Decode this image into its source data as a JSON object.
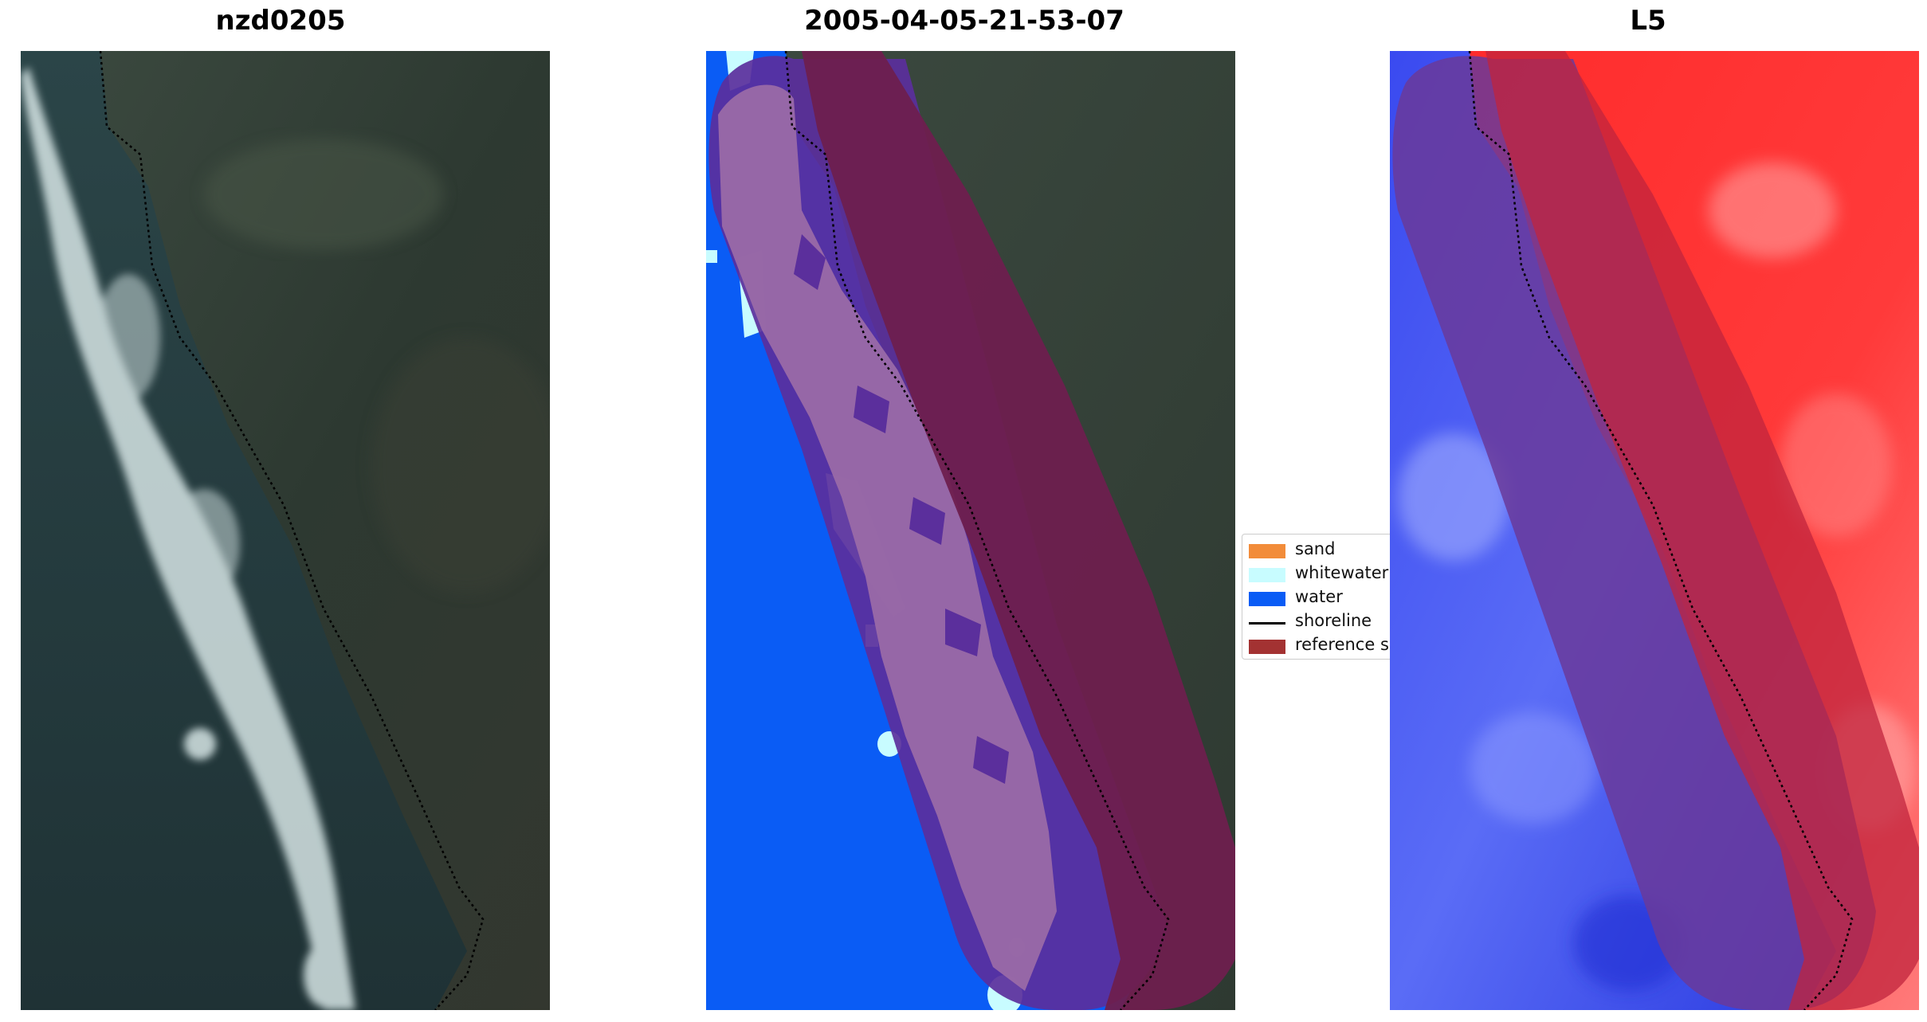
{
  "panels": [
    {
      "title": "nzd0205"
    },
    {
      "title": "2005-04-05-21-53-07"
    },
    {
      "title": "L5"
    }
  ],
  "legend": {
    "items": [
      {
        "label": "sand",
        "color": "#f28c3a",
        "kind": "patch"
      },
      {
        "label": "whitewater",
        "color": "#c8fcff",
        "kind": "patch"
      },
      {
        "label": "water",
        "color": "#0a5cf5",
        "kind": "patch"
      },
      {
        "label": "shoreline",
        "color": "#000000",
        "kind": "line"
      },
      {
        "label": "reference s",
        "color": "#a33232",
        "kind": "patch"
      }
    ]
  },
  "colors": {
    "sea_dark": "#22353a",
    "land_dark": "#2e3a32",
    "surf_white": "#d8e6e6",
    "water_blue": "#0a5cf5",
    "buffer_purple": "#6a3f9a",
    "reference_band": "#7a2050",
    "index_red": "#ff1e1e",
    "index_blue": "#2a3cf0"
  }
}
